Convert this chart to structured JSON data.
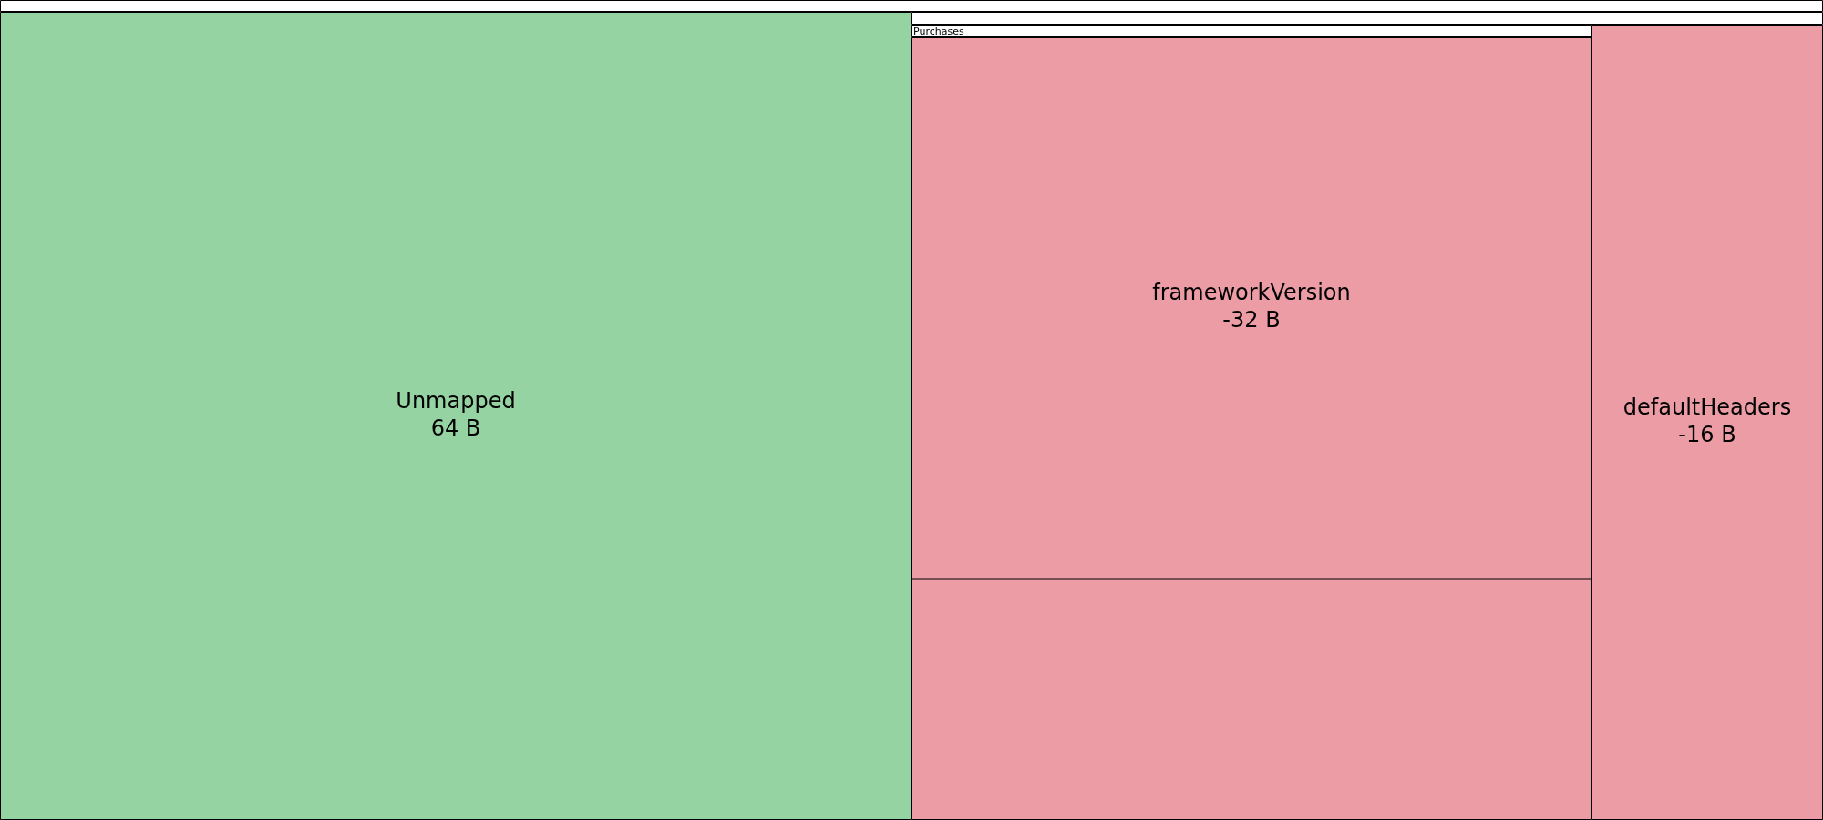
{
  "chart_data": {
    "type": "other",
    "categories": [
      "Unmapped",
      "frameworkVersion",
      "defaultHeaders",
      null
    ],
    "values": [
      64,
      -32,
      -16,
      null
    ],
    "value_labels": [
      "64 B",
      "-32 B",
      "-16 B",
      null
    ],
    "colors": [
      "#95d3a2",
      "#eb9ca5",
      "#eb9ca5",
      "#eb9ca5"
    ],
    "annotations": [
      "Purchases"
    ]
  }
}
